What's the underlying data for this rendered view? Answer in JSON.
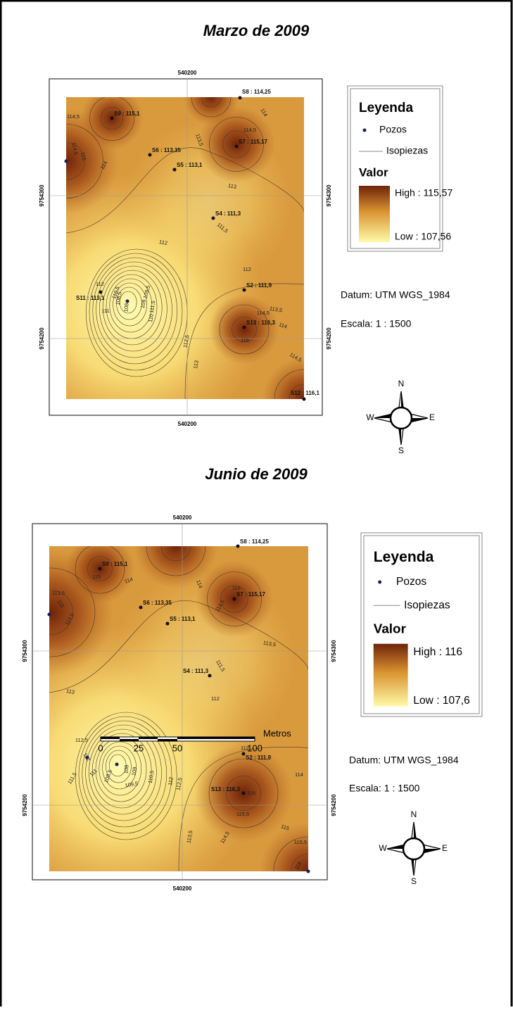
{
  "maps": [
    {
      "title": "Marzo de 2009",
      "coords": {
        "top": "540200",
        "bottom": "540200",
        "left_top": "9754300",
        "left_bottom": "9754200",
        "right_top": "9754300",
        "right_bottom": "9754200"
      },
      "wells": [
        "S8 : 114,25",
        "S9 : 115,1",
        "S7 : 115,17",
        "S6 : 113,35",
        "S5 : 113,1",
        "S4 : 111,3",
        "S2 : 111,9",
        "S11 : 113,1",
        "S13 : 116,3",
        "S12 : 116,1"
      ],
      "contour_labels": [
        "114,5",
        "114",
        "115",
        "114,5",
        "114",
        "113,5",
        "114,5",
        "113",
        "111,5",
        "112",
        "112",
        "112",
        "110,5",
        "108,5",
        "108",
        "109",
        "109,5",
        "110",
        "111",
        "111,5",
        "113,5",
        "114,5",
        "114",
        "116",
        "112,5",
        "113",
        "114,5"
      ],
      "legend": {
        "title": "Leyenda",
        "wells": "Pozos",
        "isolines": "Isopiezas",
        "value": "Valor",
        "high": "High : 115,57",
        "low": "Low : 107,56"
      },
      "datum": "Datum: UTM WGS_1984",
      "scale": "Escala: 1 : 1500",
      "compass": {
        "n": "N",
        "s": "S",
        "e": "E",
        "w": "W"
      }
    },
    {
      "title": "Junio de 2009",
      "coords": {
        "top": "540200",
        "bottom": "540200",
        "left_top": "9754300",
        "left_bottom": "9754200",
        "right_top": "9754300",
        "right_bottom": "9754200"
      },
      "wells": [
        "S8 : 114,25",
        "S9 : 115,1",
        "S7 : 115,17",
        "S6 : 113,35",
        "S5 : 113,1",
        "S4 : 111,3",
        "S2 : 111,9",
        "S13 : 116,3"
      ],
      "contour_labels": [
        "115",
        "114",
        "113,5",
        "115",
        "114,5",
        "114",
        "115",
        "114,5",
        "113,5",
        "111,5",
        "112",
        "113",
        "112,5",
        "112",
        "111",
        "111,5",
        "108,5",
        "109",
        "108",
        "109,5",
        "110,5",
        "112",
        "112,5",
        "112",
        "114",
        "116",
        "115,5",
        "115",
        "115,5",
        "113,5",
        "114,5",
        "116"
      ],
      "legend": {
        "title": "Leyenda",
        "wells": "Pozos",
        "isolines": "Isopiezas",
        "value": "Valor",
        "high": "High : 116",
        "low": "Low : 107,6"
      },
      "datum": "Datum: UTM WGS_1984",
      "scale": "Escala: 1 : 1500",
      "compass": {
        "n": "N",
        "s": "S",
        "e": "E",
        "w": "W"
      }
    }
  ],
  "scale_bar": {
    "ticks": [
      "0",
      "25",
      "50",
      "100"
    ],
    "unit": "Metros"
  }
}
